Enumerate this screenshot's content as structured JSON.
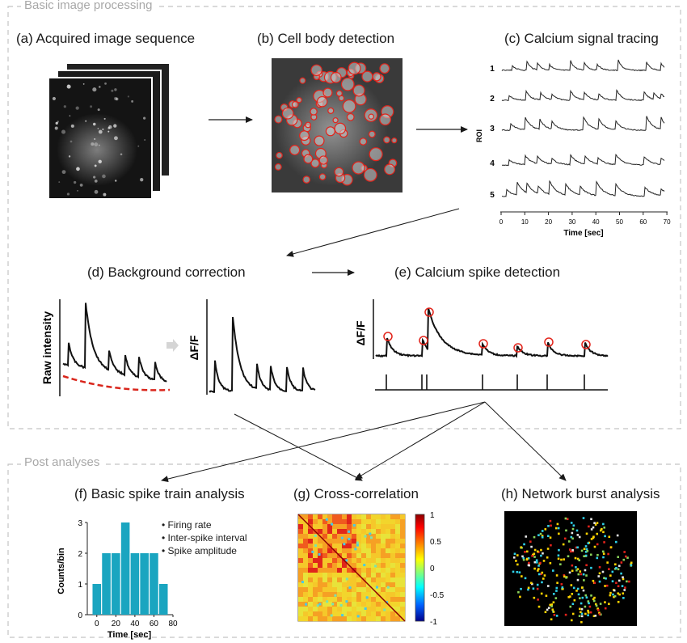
{
  "sections": {
    "basic": "Basic image processing",
    "post": "Post analyses"
  },
  "panels": {
    "a": "(a) Acquired image sequence",
    "b": "(b) Cell body detection",
    "c": "(c) Calcium signal tracing",
    "d": "(d) Background correction",
    "e": "(e) Calcium spike detection",
    "f": "(f) Basic spike train analysis",
    "g": "(g) Cross-correlation",
    "h": "(h) Network burst analysis"
  },
  "tracing": {
    "ylabel": "ROI",
    "xlabel": "Time [sec]",
    "rows": [
      "1",
      "2",
      "3",
      "4",
      "5"
    ],
    "xticks": [
      "0",
      "10",
      "20",
      "30",
      "40",
      "50",
      "60",
      "70"
    ]
  },
  "background": {
    "raw_label": "Raw intensity",
    "dff_label": "ΔF/F"
  },
  "spike": {
    "ylabel": "ΔF/F"
  },
  "histogram": {
    "ylabel": "Counts/bin",
    "xlabel": "Time [sec]",
    "bullets": [
      "Firing rate",
      "Inter-spike interval",
      "Spike amplitude"
    ],
    "bar_color": "#1aa5c0"
  },
  "colorbar": {
    "ticks": [
      "1",
      "0.5",
      "0",
      "-0.5",
      "-1"
    ]
  },
  "chart_data": {
    "type": "bar",
    "categories": [
      "0",
      "10",
      "20",
      "30",
      "40",
      "50",
      "60",
      "70"
    ],
    "x": [
      0,
      10,
      20,
      30,
      40,
      50,
      60,
      70
    ],
    "values": [
      1,
      2,
      2,
      3,
      2,
      2,
      2,
      1
    ],
    "xlabel": "Time [sec]",
    "ylabel": "Counts/bin",
    "xlim": [
      -10,
      80
    ],
    "ylim": [
      0,
      3
    ],
    "xticks": [
      0,
      20,
      40,
      60,
      80
    ],
    "yticks": [
      0,
      1,
      2,
      3
    ]
  }
}
